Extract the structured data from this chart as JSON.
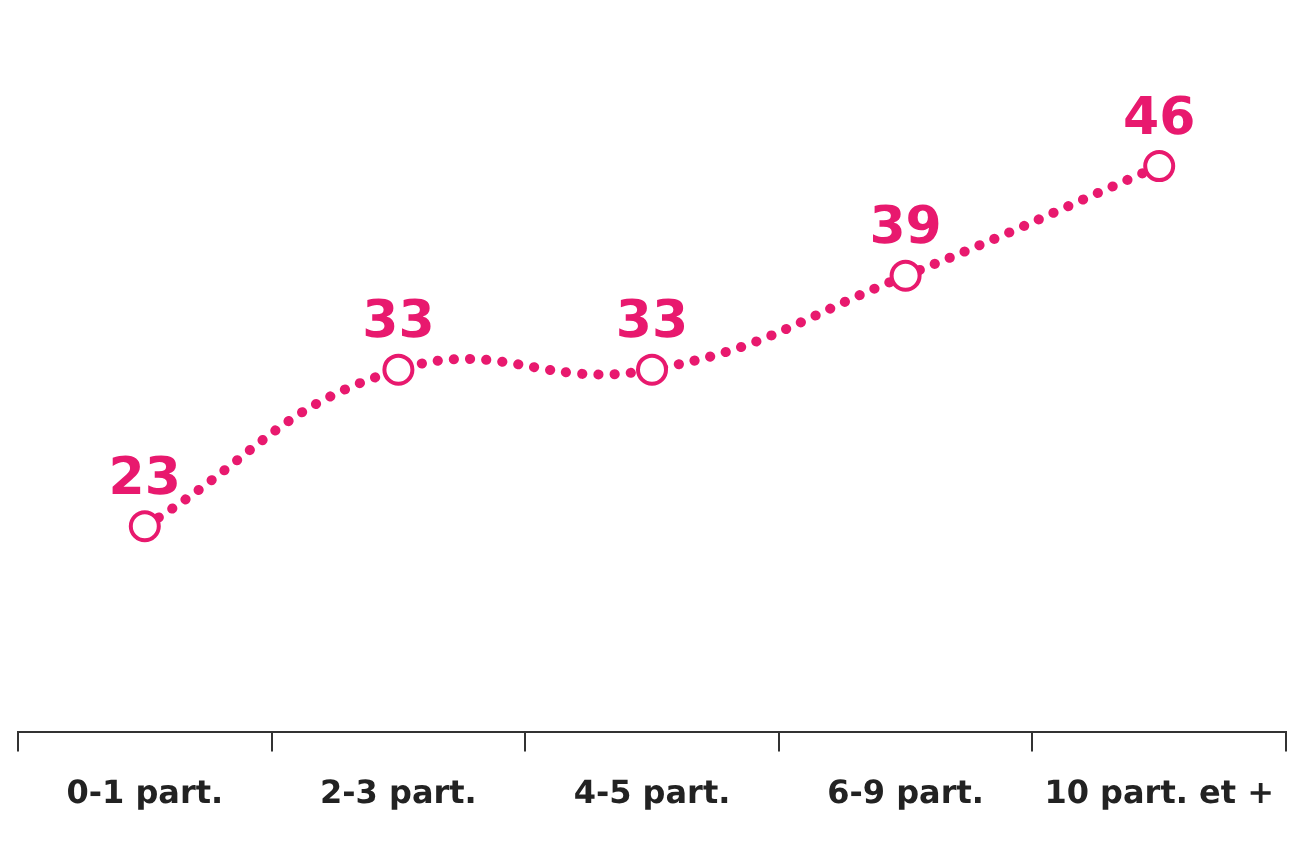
{
  "chart_data": {
    "type": "line",
    "categories": [
      "0-1 part.",
      "2-3 part.",
      "4-5 part.",
      "6-9 part.",
      "10 part. et +"
    ],
    "series": [
      {
        "color": "#e8196e",
        "values": [
          23,
          33,
          33,
          39,
          46
        ]
      }
    ],
    "data_labels": true,
    "marker": "circle",
    "line_style": "dotted",
    "legend": false,
    "grid": false,
    "tick_labels": "x"
  }
}
